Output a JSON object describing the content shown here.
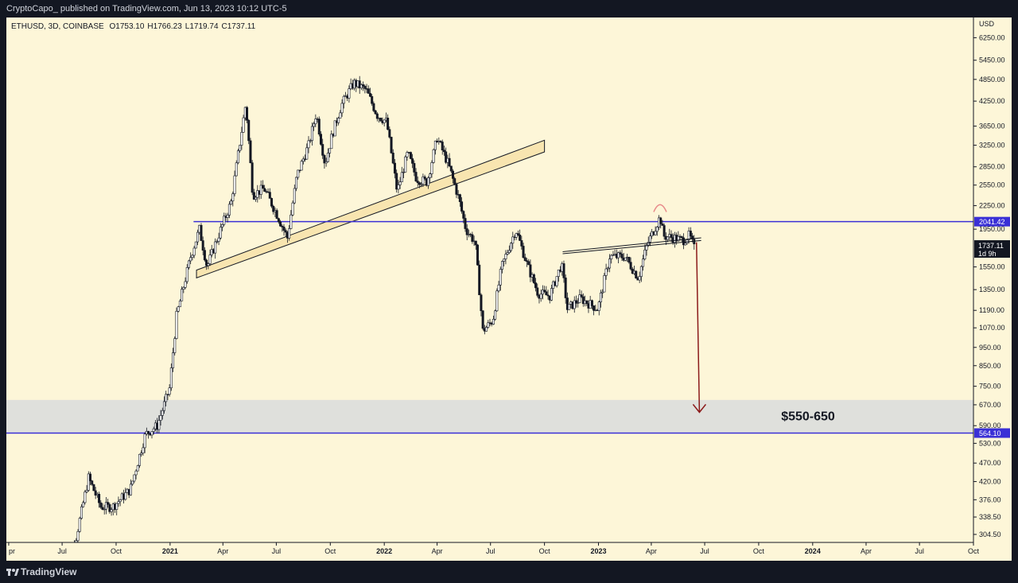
{
  "header": {
    "published_by": "CryptoCapo_ published on TradingView.com, Jun 13, 2023 10:12 UTC-5"
  },
  "legend": {
    "symbol": "ETHUSD, 3D, COINBASE",
    "open": "O1753.10",
    "high": "H1766.23",
    "low": "L1719.74",
    "close": "C1737.11"
  },
  "footer": {
    "brand": "TradingView"
  },
  "colors": {
    "background": "#fdf6d8",
    "horizontal_line": "#3a30d6",
    "arrow": "#8b1a1a",
    "zone": "#dfe0dc",
    "channel_fill": "#f8e5b0"
  },
  "chart_data": {
    "type": "candlestick",
    "scale": "log",
    "currency_label": "USD",
    "y_ticks": [
      "6250.00",
      "5450.00",
      "4850.00",
      "4250.00",
      "3650.00",
      "3250.00",
      "2850.00",
      "2550.00",
      "2250.00",
      "1950.00",
      "1550.00",
      "1350.00",
      "1190.00",
      "1070.00",
      "950.00",
      "850.00",
      "750.00",
      "670.00",
      "590.00",
      "530.00",
      "470.00",
      "420.00",
      "376.00",
      "338.50",
      "304.50"
    ],
    "x_ticks": [
      {
        "date": "2020-04-01",
        "label": "pr"
      },
      {
        "date": "2020-07-01",
        "label": "Jul"
      },
      {
        "date": "2020-10-01",
        "label": "Oct"
      },
      {
        "date": "2021-01-01",
        "label": "2021"
      },
      {
        "date": "2021-04-01",
        "label": "Apr"
      },
      {
        "date": "2021-07-01",
        "label": "Jul"
      },
      {
        "date": "2021-10-01",
        "label": "Oct"
      },
      {
        "date": "2022-01-01",
        "label": "2022"
      },
      {
        "date": "2022-04-01",
        "label": "Apr"
      },
      {
        "date": "2022-07-01",
        "label": "Jul"
      },
      {
        "date": "2022-10-01",
        "label": "Oct"
      },
      {
        "date": "2023-01-01",
        "label": "2023"
      },
      {
        "date": "2023-04-01",
        "label": "Apr"
      },
      {
        "date": "2023-07-01",
        "label": "Jul"
      },
      {
        "date": "2023-10-01",
        "label": "Oct"
      },
      {
        "date": "2024-01-01",
        "label": "2024"
      },
      {
        "date": "2024-04-01",
        "label": "Apr"
      },
      {
        "date": "2024-07-01",
        "label": "Jul"
      },
      {
        "date": "2024-10-01",
        "label": "Oct"
      }
    ],
    "y_range": [
      290,
      7000
    ],
    "x_range": [
      "2020-03-28",
      "2024-10-01"
    ],
    "price_path": [
      [
        "2020-07-01",
        240
      ],
      [
        "2020-07-25",
        300
      ],
      [
        "2020-08-15",
        430
      ],
      [
        "2020-09-05",
        360
      ],
      [
        "2020-09-25",
        360
      ],
      [
        "2020-10-25",
        400
      ],
      [
        "2020-11-20",
        560
      ],
      [
        "2020-12-10",
        590
      ],
      [
        "2020-12-31",
        740
      ],
      [
        "2021-01-12",
        1150
      ],
      [
        "2021-02-05",
        1650
      ],
      [
        "2021-02-20",
        1950
      ],
      [
        "2021-03-05",
        1550
      ],
      [
        "2021-03-20",
        1800
      ],
      [
        "2021-04-15",
        2300
      ],
      [
        "2021-05-10",
        4200
      ],
      [
        "2021-05-22",
        2400
      ],
      [
        "2021-06-10",
        2500
      ],
      [
        "2021-07-01",
        2150
      ],
      [
        "2021-07-20",
        1850
      ],
      [
        "2021-08-05",
        2700
      ],
      [
        "2021-08-25",
        3250
      ],
      [
        "2021-09-07",
        3950
      ],
      [
        "2021-09-22",
        2900
      ],
      [
        "2021-10-05",
        3500
      ],
      [
        "2021-10-20",
        4150
      ],
      [
        "2021-11-10",
        4750
      ],
      [
        "2021-12-01",
        4550
      ],
      [
        "2021-12-20",
        3900
      ],
      [
        "2022-01-05",
        3750
      ],
      [
        "2022-01-23",
        2450
      ],
      [
        "2022-02-10",
        3100
      ],
      [
        "2022-02-25",
        2650
      ],
      [
        "2022-03-15",
        2600
      ],
      [
        "2022-04-01",
        3400
      ],
      [
        "2022-04-20",
        2900
      ],
      [
        "2022-05-08",
        2350
      ],
      [
        "2022-05-20",
        1950
      ],
      [
        "2022-06-05",
        1800
      ],
      [
        "2022-06-18",
        1050
      ],
      [
        "2022-07-05",
        1120
      ],
      [
        "2022-07-20",
        1550
      ],
      [
        "2022-08-13",
        1950
      ],
      [
        "2022-09-01",
        1580
      ],
      [
        "2022-09-20",
        1320
      ],
      [
        "2022-10-10",
        1300
      ],
      [
        "2022-10-30",
        1580
      ],
      [
        "2022-11-09",
        1200
      ],
      [
        "2022-12-01",
        1280
      ],
      [
        "2022-12-31",
        1200
      ],
      [
        "2023-01-20",
        1650
      ],
      [
        "2023-02-15",
        1650
      ],
      [
        "2023-03-10",
        1450
      ],
      [
        "2023-03-25",
        1780
      ],
      [
        "2023-04-16",
        2100
      ],
      [
        "2023-04-22",
        1870
      ],
      [
        "2023-05-10",
        1850
      ],
      [
        "2023-05-25",
        1820
      ],
      [
        "2023-06-05",
        1880
      ],
      [
        "2023-06-13",
        1737
      ]
    ],
    "horizontal_lines": [
      {
        "price": 2041.42,
        "label": "2041.42",
        "from": "2021-02-10"
      },
      {
        "price": 564.1,
        "label": "564.10",
        "from": "2020-03-28"
      }
    ],
    "zone": {
      "low": 564.1,
      "high": 690,
      "label": "$550-650"
    },
    "channel": {
      "start": {
        "date": "2021-02-15",
        "low": 1450,
        "high": 1520
      },
      "end": {
        "date": "2022-10-01",
        "low": 3120,
        "high": 3350
      }
    },
    "wedge": {
      "start": {
        "date": "2022-11-01",
        "low": 1680,
        "high": 1700
      },
      "end": {
        "date": "2023-06-25",
        "low": 1820,
        "high": 1850
      }
    },
    "top_marker": {
      "date": "2023-04-16",
      "price": 2230
    },
    "arrow": {
      "from_date": "2023-06-17",
      "from_price": 1800,
      "to_date": "2023-06-22",
      "to_price": 640
    },
    "last_price": {
      "label": "1737.11",
      "countdown": "1d 9h",
      "price": 1737.11
    }
  }
}
